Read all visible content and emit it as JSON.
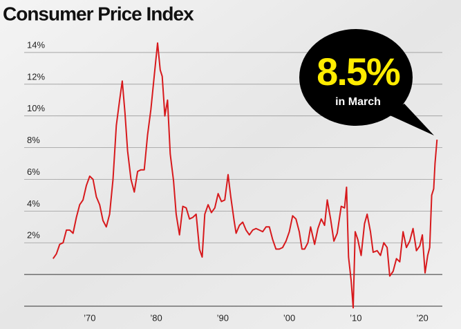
{
  "chart_data": {
    "type": "line",
    "title": "Consumer Price Index",
    "annotation": {
      "value": "8.5%",
      "text": "in March"
    },
    "xlim": [
      1964,
      2023
    ],
    "ylim": [
      -2,
      15
    ],
    "xticks": [
      {
        "value": 1970,
        "label": "’70"
      },
      {
        "value": 1980,
        "label": "’80"
      },
      {
        "value": 1990,
        "label": "’90"
      },
      {
        "value": 2000,
        "label": "’00"
      },
      {
        "value": 2010,
        "label": "’10"
      },
      {
        "value": 2020,
        "label": "’20"
      }
    ],
    "yticks": [
      {
        "value": 2,
        "label": "2%"
      },
      {
        "value": 4,
        "label": "4%"
      },
      {
        "value": 6,
        "label": "6%"
      },
      {
        "value": 8,
        "label": "8%"
      },
      {
        "value": 10,
        "label": "10%"
      },
      {
        "value": 12,
        "label": "12%"
      },
      {
        "value": 14,
        "label": "14%"
      }
    ],
    "grid": true,
    "x": [
      1964.5,
      1965,
      1965.5,
      1966,
      1966.5,
      1967,
      1967.5,
      1968,
      1968.5,
      1969,
      1969.5,
      1970,
      1970.5,
      1971,
      1971.5,
      1972,
      1972.5,
      1973,
      1973.5,
      1974,
      1974.5,
      1974.9,
      1975.3,
      1975.7,
      1976.2,
      1976.7,
      1977.2,
      1977.7,
      1978.2,
      1978.7,
      1979.2,
      1979.7,
      1980.2,
      1980.6,
      1980.9,
      1981.3,
      1981.7,
      1982.1,
      1982.6,
      1983,
      1983.5,
      1984,
      1984.5,
      1985,
      1985.5,
      1986,
      1986.5,
      1986.9,
      1987.3,
      1987.8,
      1988.3,
      1988.8,
      1989.3,
      1989.8,
      1990.3,
      1990.8,
      1991.2,
      1991.7,
      1992,
      1992.5,
      1993,
      1993.5,
      1994,
      1994.5,
      1995,
      1995.5,
      1996,
      1996.5,
      1997,
      1997.5,
      1998,
      1998.5,
      1999,
      1999.5,
      2000,
      2000.5,
      2001,
      2001.5,
      2001.9,
      2002.3,
      2002.8,
      2003.2,
      2003.8,
      2004.3,
      2004.8,
      2005.3,
      2005.7,
      2006.2,
      2006.7,
      2007.2,
      2007.8,
      2008.3,
      2008.6,
      2008.9,
      2009.3,
      2009.6,
      2009.9,
      2010.3,
      2010.8,
      2011.3,
      2011.7,
      2012.2,
      2012.6,
      2013.2,
      2013.7,
      2014.2,
      2014.7,
      2015.1,
      2015.6,
      2016.1,
      2016.6,
      2017.1,
      2017.6,
      2018.1,
      2018.6,
      2019.1,
      2019.6,
      2020.0,
      2020.4,
      2020.8,
      2021.1,
      2021.4,
      2021.7,
      2021.9,
      2022.2
    ],
    "series": [
      {
        "name": "CPI",
        "color": "#d7191c",
        "values": [
          1.0,
          1.3,
          1.9,
          2.0,
          2.8,
          2.8,
          2.6,
          3.6,
          4.4,
          4.7,
          5.6,
          6.2,
          6.0,
          4.9,
          4.4,
          3.4,
          3.0,
          3.8,
          6.0,
          9.4,
          11.0,
          12.2,
          10.2,
          7.8,
          6.0,
          5.2,
          6.5,
          6.6,
          6.6,
          8.8,
          10.4,
          12.5,
          14.6,
          12.9,
          12.5,
          10.0,
          11.0,
          7.6,
          5.9,
          3.8,
          2.5,
          4.3,
          4.2,
          3.5,
          3.6,
          3.8,
          1.6,
          1.1,
          3.8,
          4.4,
          3.9,
          4.2,
          5.1,
          4.6,
          4.7,
          6.3,
          4.9,
          3.4,
          2.6,
          3.1,
          3.3,
          2.8,
          2.5,
          2.8,
          2.9,
          2.8,
          2.7,
          3.0,
          3.0,
          2.2,
          1.6,
          1.6,
          1.7,
          2.1,
          2.7,
          3.7,
          3.5,
          2.7,
          1.6,
          1.6,
          2.0,
          3.0,
          1.9,
          2.9,
          3.5,
          3.1,
          4.7,
          3.5,
          2.1,
          2.6,
          4.3,
          4.2,
          5.5,
          1.1,
          -0.4,
          -2.1,
          2.7,
          2.2,
          1.2,
          3.2,
          3.8,
          2.7,
          1.4,
          1.5,
          1.2,
          2.0,
          1.7,
          -0.1,
          0.2,
          1.0,
          0.8,
          2.7,
          1.7,
          2.1,
          2.9,
          1.5,
          1.8,
          2.5,
          0.1,
          1.2,
          1.7,
          5.0,
          5.4,
          7.0,
          8.5
        ]
      }
    ]
  }
}
